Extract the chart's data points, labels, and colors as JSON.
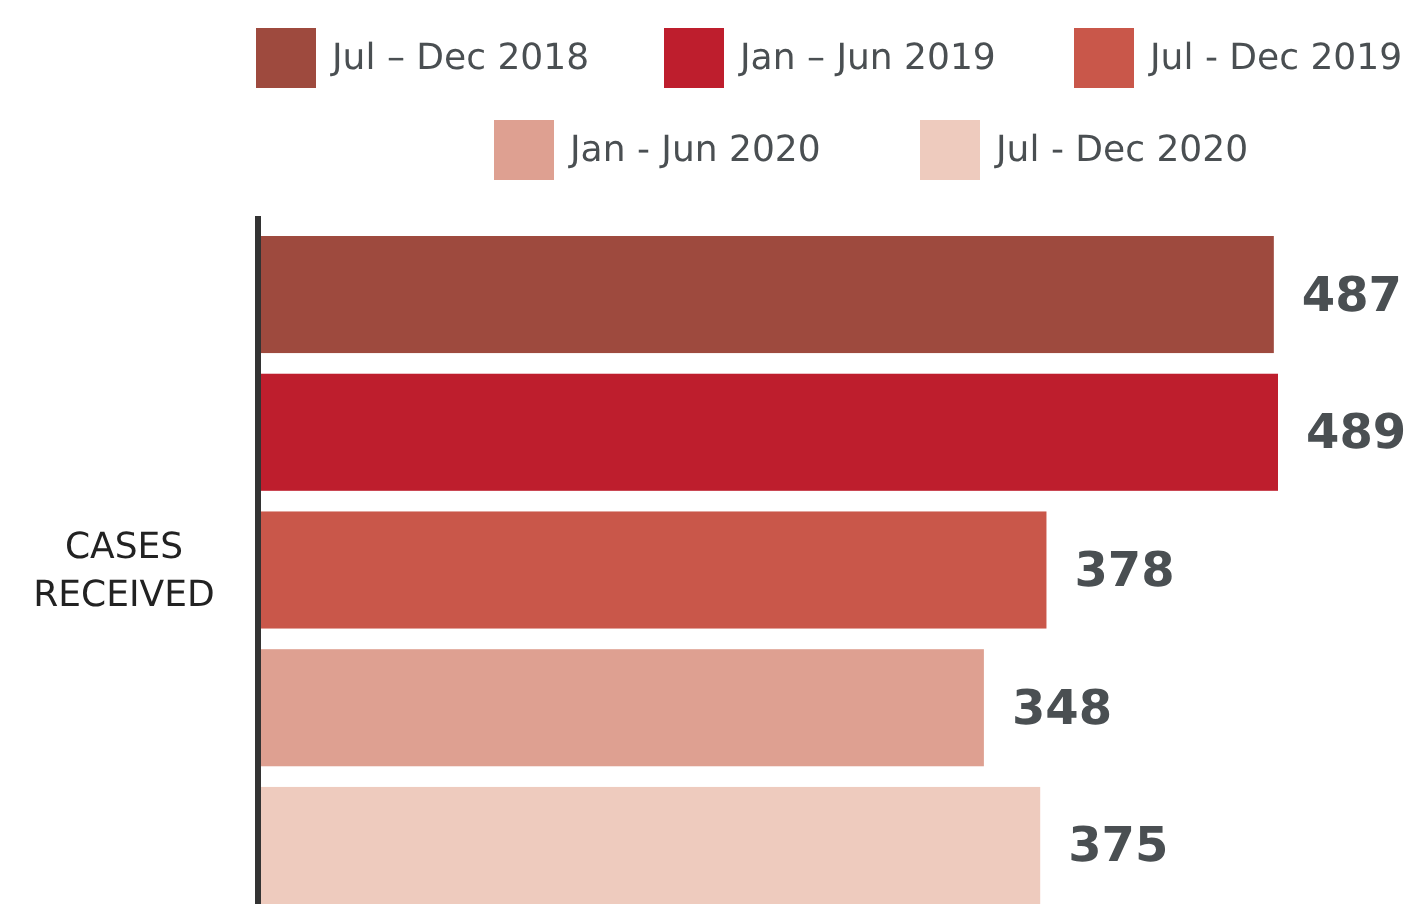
{
  "chart_data": {
    "type": "bar",
    "orientation": "horizontal",
    "ylabel": "CASES RECEIVED",
    "categories": [
      null
    ],
    "series": [
      {
        "name": "Jul – Dec 2018",
        "color": "#9e4a3e",
        "values": [
          487
        ]
      },
      {
        "name": "Jan – Jun 2019",
        "color": "#be1e2d",
        "values": [
          489
        ]
      },
      {
        "name": "Jul - Dec 2019",
        "color": "#c9574a",
        "values": [
          378
        ]
      },
      {
        "name": "Jan - Jun 2020",
        "color": "#dea091",
        "values": [
          348
        ]
      },
      {
        "name": "Jul - Dec 2020",
        "color": "#eecbbe",
        "values": [
          375
        ]
      }
    ],
    "data_labels": true,
    "legend": "top"
  }
}
